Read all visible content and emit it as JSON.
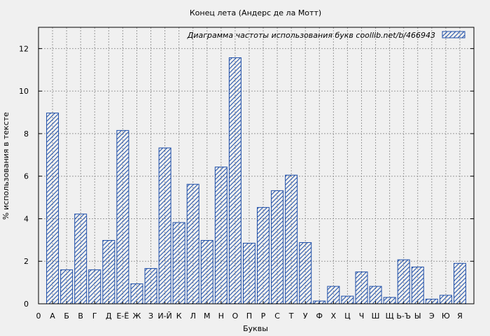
{
  "chart_data": {
    "type": "bar",
    "title": "Конец лета (Андерс де ла Мотт)",
    "xlabel": "Буквы",
    "ylabel": "% использования в тексте",
    "legend": {
      "label": "Диаграмма частоты использования букв  coollib.net/b/466943",
      "position": "top-right"
    },
    "ylim": [
      0,
      13
    ],
    "yticks": [
      0,
      2,
      4,
      6,
      8,
      10,
      12
    ],
    "x_tick_labels": [
      "0",
      "А",
      "Б",
      "В",
      "Г",
      "Д",
      "Е-Ё",
      "Ж",
      "З",
      "И-Й",
      "К",
      "Л",
      "М",
      "Н",
      "О",
      "П",
      "Р",
      "С",
      "Т",
      "У",
      "Ф",
      "Х",
      "Ц",
      "Ч",
      "Ш",
      "Щ",
      "Ь-Ъ",
      "Ы",
      "Э",
      "Ю",
      "Я"
    ],
    "categories": [
      "А",
      "Б",
      "В",
      "Г",
      "Д",
      "Е-Ё",
      "Ж",
      "З",
      "И-Й",
      "К",
      "Л",
      "М",
      "Н",
      "О",
      "П",
      "Р",
      "С",
      "Т",
      "У",
      "Ф",
      "Х",
      "Ц",
      "Ч",
      "Ш",
      "Щ",
      "Ь-Ъ",
      "Ы",
      "Э",
      "Ю",
      "Я"
    ],
    "values": [
      8.97,
      1.6,
      4.22,
      1.6,
      2.98,
      8.15,
      0.94,
      1.66,
      7.33,
      3.82,
      5.62,
      2.98,
      6.43,
      11.57,
      2.85,
      4.53,
      5.32,
      6.05,
      2.88,
      0.13,
      0.82,
      0.36,
      1.5,
      0.82,
      0.3,
      2.07,
      1.73,
      0.22,
      0.4,
      1.9
    ],
    "grid": true,
    "colors": {
      "bar_stroke": "#1f4fa8",
      "background": "#f0f0f0",
      "plot_bg": "#f0f0f0"
    }
  }
}
